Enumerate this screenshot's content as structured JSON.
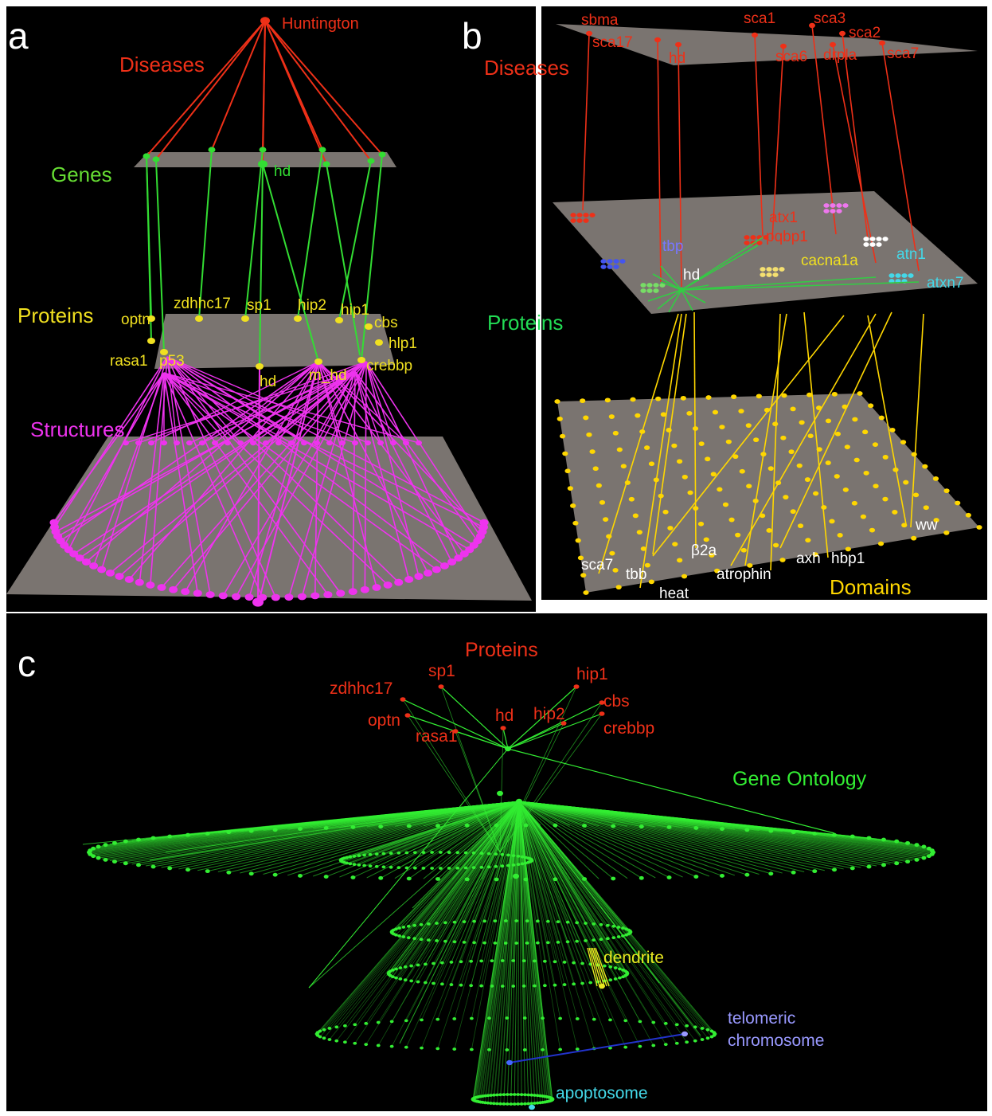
{
  "colors": {
    "background": "#000000",
    "plane": "#7a7470",
    "diseases": "#ee3018",
    "genes": "#33dd33",
    "proteins_a": "#f0e020",
    "structures": "#ee33ee",
    "domains": "#ffd700",
    "cyan": "#44d8e8",
    "ontology": "#33ee33",
    "blue_edge": "#2233cc",
    "telomeric": "#9999ff",
    "white": "#ffffff"
  },
  "panel_a": {
    "letter": "a",
    "layers": {
      "diseases": "Diseases",
      "genes": "Genes",
      "proteins": "Proteins",
      "structures": "Structures"
    },
    "disease_node": "Huntington",
    "gene_label": "hd",
    "protein_labels": [
      "optn",
      "zdhhc17",
      "sp1",
      "hip2",
      "hip1",
      "cbs",
      "hlp1",
      "rasa1",
      "p53",
      "hd",
      "m_hd",
      "crebbp"
    ],
    "structure_label": "1jsp"
  },
  "panel_b": {
    "letter": "b",
    "layers": {
      "diseases": "Diseases",
      "proteins": "Proteins",
      "domains": "Domains"
    },
    "disease_labels": [
      "sbma",
      "sca17",
      "hd",
      "sca1",
      "sca3",
      "sca2",
      "sca6",
      "drpla",
      "sca7"
    ],
    "protein_labels": [
      "atx1",
      "pqbp1",
      "tbp",
      "hd",
      "cacna1a",
      "atn1",
      "atxn7"
    ],
    "domain_labels": [
      "sca7",
      "tbb",
      "heat",
      "β2a",
      "atrophin",
      "axh",
      "hbp1",
      "ww"
    ]
  },
  "panel_c": {
    "letter": "c",
    "proteins_title": "Proteins",
    "ontology_title": "Gene Ontology",
    "protein_labels": [
      "zdhhc17",
      "sp1",
      "hip1",
      "cbs",
      "crebbp",
      "optn",
      "rasa1",
      "hd",
      "hip2"
    ],
    "terms": [
      "dendrite",
      "telomeric",
      "chromosome",
      "apoptosome"
    ]
  }
}
